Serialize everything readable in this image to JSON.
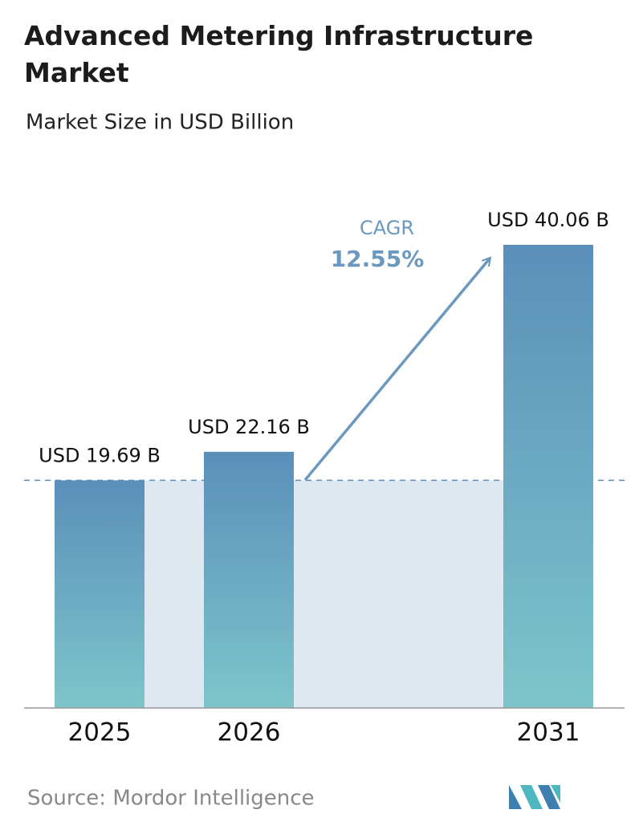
{
  "chart_data": {
    "type": "bar",
    "title": "Advanced Metering Infrastructure Market",
    "subtitle": "Market Size in USD Billion",
    "categories": [
      "2025",
      "2026",
      "2031"
    ],
    "values": [
      19.69,
      22.16,
      40.06
    ],
    "value_labels": [
      "USD 19.69 B",
      "USD 22.16 B",
      "USD 40.06 B"
    ],
    "color": "#5b8fba",
    "annotations": {
      "cagr_label": "CAGR",
      "cagr_value": "12.55%"
    },
    "source": "Source:  Mordor Intelligence"
  }
}
